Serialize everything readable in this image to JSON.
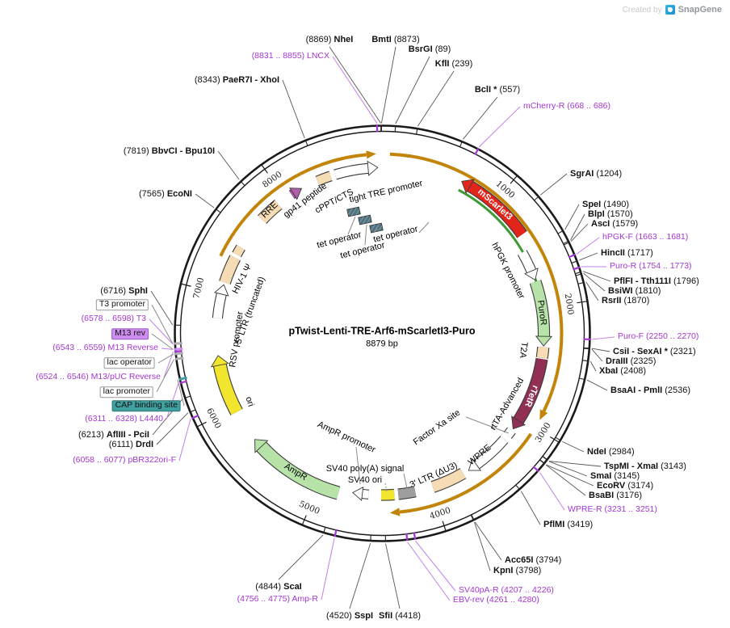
{
  "watermark": {
    "created_by": "Created by",
    "brand": "SnapGene"
  },
  "plasmid": {
    "name": "pTwist-Lenti-TRE-Arf6-mScarletI3-Puro",
    "size_label": "8879 bp",
    "length_bp": 8879
  },
  "ticks": [
    {
      "bp": 1000,
      "label": "1000"
    },
    {
      "bp": 2000,
      "label": "2000"
    },
    {
      "bp": 3000,
      "label": "3000"
    },
    {
      "bp": 4000,
      "label": "4000"
    },
    {
      "bp": 5000,
      "label": "5000"
    },
    {
      "bp": 6000,
      "label": "6000"
    },
    {
      "bp": 7000,
      "label": "7000"
    },
    {
      "bp": 8000,
      "label": "8000"
    }
  ],
  "enzymes": [
    {
      "pre": "(8869) ",
      "name": "NheI",
      "suf": "",
      "bp": 8869
    },
    {
      "pre": "",
      "name": "BmtI",
      "suf": " (8873)",
      "bp": 8873
    },
    {
      "pre": "",
      "name": "BsrGI",
      "suf": " (89)",
      "bp": 89
    },
    {
      "pre": "",
      "name": "KflI",
      "suf": " (239)",
      "bp": 239
    },
    {
      "pre": "",
      "name": "BclI *",
      "suf": " (557)",
      "bp": 557
    },
    {
      "pre": "",
      "name": "SgrAI",
      "suf": " (1204)",
      "bp": 1204
    },
    {
      "pre": "",
      "name": "SpeI",
      "suf": " (1490)",
      "bp": 1490
    },
    {
      "pre": "",
      "name": "BlpI",
      "suf": " (1570)",
      "bp": 1570
    },
    {
      "pre": "",
      "name": "AscI",
      "suf": " (1579)",
      "bp": 1579
    },
    {
      "pre": "",
      "name": "HincII",
      "suf": " (1717)",
      "bp": 1717
    },
    {
      "pre": "",
      "name": "PflFI - Tth111I",
      "suf": " (1796)",
      "bp": 1796
    },
    {
      "pre": "",
      "name": "BsiWI",
      "suf": " (1810)",
      "bp": 1810
    },
    {
      "pre": "",
      "name": "RsrII",
      "suf": " (1870)",
      "bp": 1870
    },
    {
      "pre": "",
      "name": "CsiI - SexAI *",
      "suf": " (2321)",
      "bp": 2321
    },
    {
      "pre": "",
      "name": "DraIII",
      "suf": " (2325)",
      "bp": 2325
    },
    {
      "pre": "",
      "name": "XbaI",
      "suf": " (2408)",
      "bp": 2408
    },
    {
      "pre": "",
      "name": "BsaAI - PmlI",
      "suf": " (2536)",
      "bp": 2536
    },
    {
      "pre": "",
      "name": "NdeI",
      "suf": " (2984)",
      "bp": 2984
    },
    {
      "pre": "",
      "name": "TspMI - XmaI",
      "suf": " (3143)",
      "bp": 3143
    },
    {
      "pre": "",
      "name": "SmaI",
      "suf": " (3145)",
      "bp": 3145
    },
    {
      "pre": "",
      "name": "EcoRV",
      "suf": " (3174)",
      "bp": 3174
    },
    {
      "pre": "",
      "name": "BsaBI",
      "suf": " (3176)",
      "bp": 3176
    },
    {
      "pre": "",
      "name": "PflMI",
      "suf": " (3419)",
      "bp": 3419
    },
    {
      "pre": "",
      "name": "Acc65I",
      "suf": " (3794)",
      "bp": 3794
    },
    {
      "pre": "",
      "name": "KpnI",
      "suf": " (3798)",
      "bp": 3798
    },
    {
      "pre": "",
      "name": "SfiI",
      "suf": " (4418)",
      "bp": 4418
    },
    {
      "pre": "(4520) ",
      "name": "SspI",
      "suf": "",
      "bp": 4520
    },
    {
      "pre": "(4844) ",
      "name": "ScaI",
      "suf": "",
      "bp": 4844
    },
    {
      "pre": "(6111) ",
      "name": "DrdI",
      "suf": "",
      "bp": 6111
    },
    {
      "pre": "(6213) ",
      "name": "AflIII - PciI",
      "suf": "",
      "bp": 6213
    },
    {
      "pre": "(6716) ",
      "name": "SphI",
      "suf": "",
      "bp": 6716
    },
    {
      "pre": "(7565) ",
      "name": "EcoNI",
      "suf": "",
      "bp": 7565
    },
    {
      "pre": "(7819) ",
      "name": "BbvCI - Bpu10I",
      "suf": "",
      "bp": 7819
    },
    {
      "pre": "(8343) ",
      "name": "PaeR7I - XhoI",
      "suf": "",
      "bp": 8343
    }
  ],
  "primers": [
    {
      "label": "(8831 .. 8855) LNCX",
      "bp": 8843
    },
    {
      "label": "mCherry-R (668 .. 686)",
      "bp": 677
    },
    {
      "label": "hPGK-F (1663 .. 1681)",
      "bp": 1672
    },
    {
      "label": "Puro-R (1754 .. 1773)",
      "bp": 1763
    },
    {
      "label": "Puro-F (2250 .. 2270)",
      "bp": 2260
    },
    {
      "label": "WPRE-R (3231 .. 3251)",
      "bp": 3241
    },
    {
      "label": "SV40pA-R (4207 .. 4226)",
      "bp": 4216
    },
    {
      "label": "EBV-rev (4261 .. 4280)",
      "bp": 4270
    },
    {
      "label": "(4756 .. 4775) Amp-R",
      "bp": 4765
    },
    {
      "label": "(6058 .. 6077) pBR322ori-F",
      "bp": 6067
    },
    {
      "label": "(6311 .. 6328) L4440",
      "bp": 6320
    },
    {
      "label": "(6524 .. 6546) M13/pUC Reverse",
      "bp": 6535
    },
    {
      "label": "(6543 .. 6559) M13 Reverse",
      "bp": 6551
    },
    {
      "label": "(6578 .. 6598) T3",
      "bp": 6588
    }
  ],
  "small_features": [
    {
      "label": "T3 promoter",
      "bp": 6590,
      "style": "outline"
    },
    {
      "label": "M13 rev",
      "bp": 6551,
      "style": "fill-purple"
    },
    {
      "label": "lac operator",
      "bp": 6520,
      "style": "outline"
    },
    {
      "label": "lac promoter",
      "bp": 6485,
      "style": "outline"
    },
    {
      "label": "CAP binding site",
      "bp": 6345,
      "style": "fill-teal"
    }
  ],
  "features": [
    {
      "label": "",
      "start": 7290,
      "end": 8830,
      "shape": "arrow-cw",
      "color": "#C2850A"
    },
    {
      "label": "",
      "start": 60,
      "end": 2930,
      "shape": "arrow-cw",
      "color": "#C2850A"
    },
    {
      "label": "",
      "start": 3060,
      "end": 4380,
      "shape": "arrow-cw",
      "color": "#C2850A"
    },
    {
      "label": "",
      "start": 690,
      "end": 2270,
      "shape": "arc",
      "color": "#3E9B35"
    },
    {
      "label": "mScarlet3",
      "start": 680,
      "end": 1350,
      "shape": "arrow-ccw",
      "color": "#E3241B",
      "label_color": "#FFFFFF",
      "bold": true
    },
    {
      "label": "hPGK promoter",
      "start": 1480,
      "end": 1745,
      "shape": "arrow-cw",
      "color": "#FFFFFF"
    },
    {
      "label": "PuroR",
      "start": 1760,
      "end": 2330,
      "shape": "arrow-cw",
      "color": "#B7E3A8"
    },
    {
      "label": "T2A",
      "start": 2340,
      "end": 2435,
      "shape": "box",
      "color": "#F6DCB4"
    },
    {
      "label": "rTetR",
      "start": 2445,
      "end": 3110,
      "shape": "arrow-cw",
      "color": "#912F55",
      "label_color": "#FFFFFF",
      "bold": true
    },
    {
      "label": "Factor Xa site",
      "start": 3130,
      "end": 3185,
      "shape": "box",
      "color": "#FFFFFF"
    },
    {
      "label": "WPRE",
      "start": 3230,
      "end": 3645,
      "shape": "arrow-cw",
      "color": "#FFFFFF"
    },
    {
      "label": "3' LTR (ΔU3)",
      "start": 3700,
      "end": 3990,
      "shape": "box",
      "color": "#F6DCB4"
    },
    {
      "label": "SV40 poly(A) signal",
      "start": 4150,
      "end": 4300,
      "shape": "box",
      "color": "#9E9E9E"
    },
    {
      "label": "SV40 ori",
      "start": 4335,
      "end": 4450,
      "shape": "box",
      "color": "#F2E52E"
    },
    {
      "label": "AmpR promoter",
      "start": 4560,
      "end": 4700,
      "shape": "arrow-cw",
      "color": "#FFFFFF"
    },
    {
      "label": "AmpR",
      "start": 4820,
      "end": 5680,
      "shape": "arrow-cw",
      "color": "#B7E3A8"
    },
    {
      "label": "ori",
      "start": 5960,
      "end": 6470,
      "shape": "arrow-cw",
      "color": "#F2E52E"
    },
    {
      "label": "RSV promoter",
      "start": 6790,
      "end": 7080,
      "shape": "arrow-cw",
      "color": "#FFFFFF"
    },
    {
      "label": "5' LTR (truncated)",
      "start": 7100,
      "end": 7330,
      "shape": "box",
      "color": "#F6DCB4"
    },
    {
      "label": "HIV-1 Ψ",
      "start": 7360,
      "end": 7430,
      "shape": "box",
      "color": "#F6DCB4"
    },
    {
      "label": "RRE",
      "start": 7730,
      "end": 7920,
      "shape": "box",
      "color": "#F6DCB4"
    },
    {
      "label": "gp41 peptide",
      "start": 8060,
      "end": 8160,
      "shape": "arrow-cw",
      "color": "#B05FA8"
    },
    {
      "label": "cPPT/CTS",
      "start": 8310,
      "end": 8430,
      "shape": "box",
      "color": "#F6DCB4"
    },
    {
      "label": "tight TRE promoter",
      "start": 8470,
      "end": 8840,
      "shape": "arrow-cw",
      "color": "#FFFFFF"
    },
    {
      "label": "tet operator",
      "shape": "site-box"
    },
    {
      "label": "tet operator",
      "shape": "site-box"
    },
    {
      "label": "tet operator",
      "shape": "site-box"
    },
    {
      "label": "rtTA-Advanced",
      "shape": "label"
    }
  ],
  "colors": {
    "backbone": "#1A1A1A",
    "gold_arc": "#C2850A",
    "primer_text": "#A437D1",
    "primer_line": "#C480E8",
    "enzyme_line": "#555555",
    "feature_line": "#8A8A8A",
    "small_feature_purple": "#CE8EF0",
    "small_feature_teal": "#3FA0A0"
  }
}
